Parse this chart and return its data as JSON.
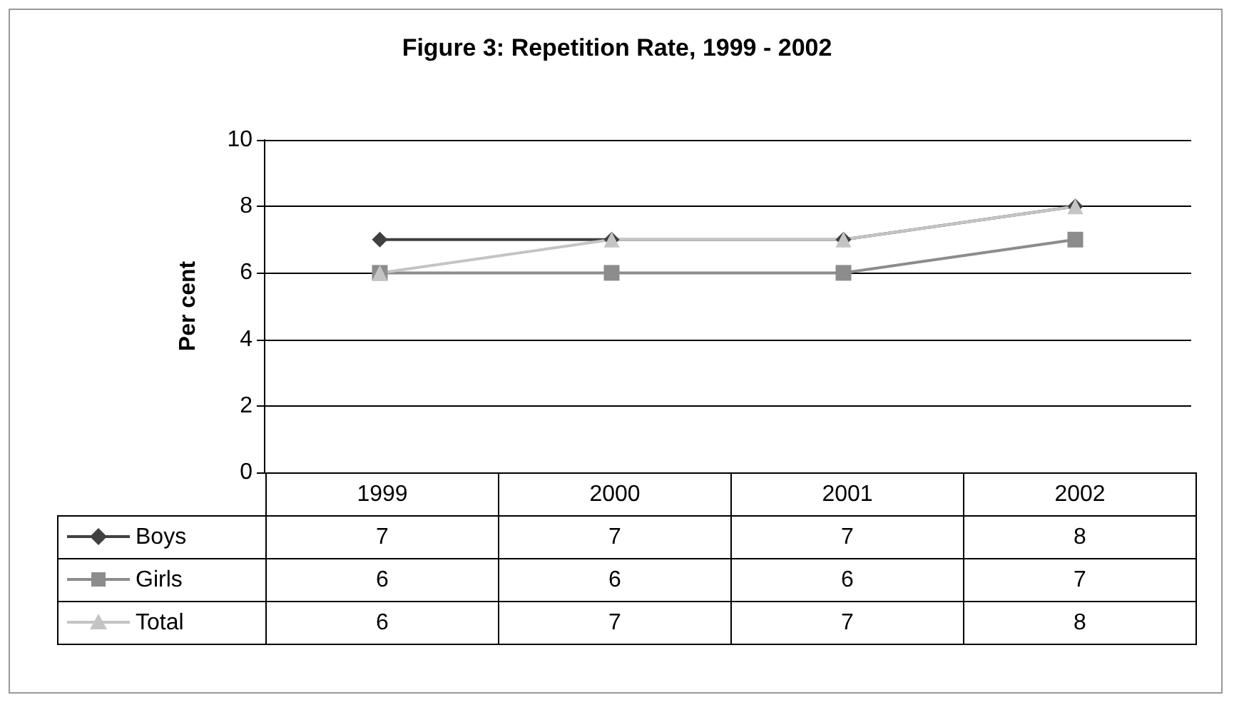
{
  "chart_data": {
    "type": "line",
    "title": "Figure 3: Repetition Rate, 1999 - 2002",
    "ylabel": "Per cent",
    "categories": [
      "1999",
      "2000",
      "2001",
      "2002"
    ],
    "series": [
      {
        "name": "Boys",
        "color": "#404040",
        "marker": "diamond",
        "values": [
          7,
          7,
          7,
          8
        ]
      },
      {
        "name": "Girls",
        "color": "#8c8c8c",
        "marker": "square",
        "values": [
          6,
          6,
          6,
          7
        ]
      },
      {
        "name": "Total",
        "color": "#c4c4c4",
        "marker": "triangle",
        "values": [
          6,
          7,
          7,
          8
        ]
      }
    ],
    "ylim": [
      0,
      10
    ],
    "yticks": [
      0,
      2,
      4,
      6,
      8,
      10
    ],
    "grid": "y",
    "legend": "bottom",
    "data_labels": true,
    "line_style": "solid"
  }
}
